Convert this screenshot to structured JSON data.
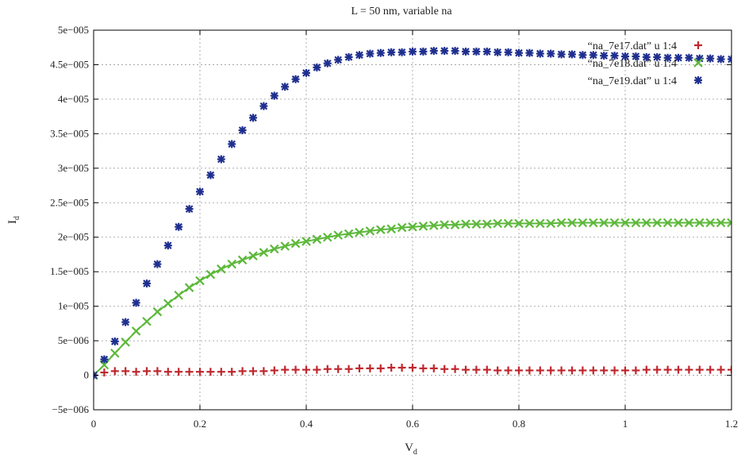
{
  "chart_data": {
    "type": "scatter",
    "title": "L = 50 nm, variable na",
    "xlabel": "V",
    "xlabel_sub": "d",
    "ylabel": "I",
    "ylabel_sub": "d",
    "xlim": [
      0,
      1.2
    ],
    "ylim": [
      -5e-06,
      5e-05
    ],
    "grid": true,
    "legend_position": "top-right",
    "x_ticks": [
      0,
      0.2,
      0.4,
      0.6,
      0.8,
      1,
      1.2
    ],
    "x_tick_labels": [
      "0",
      "0.2",
      "0.4",
      "0.6",
      "0.8",
      "1",
      "1.2"
    ],
    "y_ticks": [
      -5e-06,
      0,
      5e-06,
      1e-05,
      1.5e-05,
      2e-05,
      2.5e-05,
      3e-05,
      3.5e-05,
      4e-05,
      4.5e-05,
      5e-05
    ],
    "y_tick_labels": [
      "−5e−006",
      "0",
      "5e−006",
      "1e−005",
      "1.5e−005",
      "2e−005",
      "2.5e−005",
      "3e−005",
      "3.5e−005",
      "4e−005",
      "4.5e−005",
      "5e−005"
    ],
    "x": [
      0,
      0.02,
      0.04,
      0.06,
      0.08,
      0.1,
      0.12,
      0.14,
      0.16,
      0.18,
      0.2,
      0.22,
      0.24,
      0.26,
      0.28,
      0.3,
      0.32,
      0.34,
      0.36,
      0.38,
      0.4,
      0.42,
      0.44,
      0.46,
      0.48,
      0.5,
      0.52,
      0.54,
      0.56,
      0.58,
      0.6,
      0.62,
      0.64,
      0.66,
      0.68,
      0.7,
      0.72,
      0.74,
      0.76,
      0.78,
      0.8,
      0.82,
      0.84,
      0.86,
      0.88,
      0.9,
      0.92,
      0.94,
      0.96,
      0.98,
      1,
      1.02,
      1.04,
      1.06,
      1.08,
      1.1,
      1.12,
      1.14,
      1.16,
      1.18,
      1.2
    ],
    "series": [
      {
        "name": "“na_7e17.dat” u 1:4",
        "marker": "plus",
        "color": "#c0272d",
        "values": [
          0,
          4e-07,
          6e-07,
          6e-07,
          5e-07,
          6e-07,
          6e-07,
          5e-07,
          5e-07,
          5e-07,
          5e-07,
          5e-07,
          5e-07,
          5e-07,
          6e-07,
          6e-07,
          6e-07,
          7e-07,
          8e-07,
          8e-07,
          8e-07,
          8e-07,
          9e-07,
          9e-07,
          9e-07,
          1e-06,
          1e-06,
          1e-06,
          1.1e-06,
          1.1e-06,
          1.1e-06,
          1e-06,
          1e-06,
          9e-07,
          9e-07,
          8e-07,
          8e-07,
          8e-07,
          7e-07,
          7e-07,
          7e-07,
          7e-07,
          7e-07,
          7e-07,
          7e-07,
          7e-07,
          7e-07,
          7e-07,
          7e-07,
          7e-07,
          7e-07,
          7e-07,
          8e-07,
          8e-07,
          8e-07,
          8e-07,
          8e-07,
          8e-07,
          8e-07,
          8e-07,
          8e-07
        ]
      },
      {
        "name": "“na_7e18.dat” u 1:4",
        "marker": "cross",
        "color": "#5cb83a",
        "values": [
          0,
          1.5e-06,
          3.2e-06,
          4.8e-06,
          6.4e-06,
          7.8e-06,
          9.2e-06,
          1.04e-05,
          1.16e-05,
          1.27e-05,
          1.37e-05,
          1.46e-05,
          1.54e-05,
          1.61e-05,
          1.67e-05,
          1.73e-05,
          1.78e-05,
          1.83e-05,
          1.87e-05,
          1.91e-05,
          1.94e-05,
          1.97e-05,
          2e-05,
          2.03e-05,
          2.05e-05,
          2.07e-05,
          2.09e-05,
          2.11e-05,
          2.12e-05,
          2.14e-05,
          2.15e-05,
          2.16e-05,
          2.17e-05,
          2.18e-05,
          2.18e-05,
          2.19e-05,
          2.19e-05,
          2.19e-05,
          2.2e-05,
          2.2e-05,
          2.2e-05,
          2.2e-05,
          2.2e-05,
          2.2e-05,
          2.21e-05,
          2.21e-05,
          2.21e-05,
          2.21e-05,
          2.21e-05,
          2.21e-05,
          2.21e-05,
          2.21e-05,
          2.21e-05,
          2.21e-05,
          2.21e-05,
          2.21e-05,
          2.21e-05,
          2.21e-05,
          2.21e-05,
          2.21e-05,
          2.21e-05
        ]
      },
      {
        "name": "“na_7e19.dat” u 1:4",
        "marker": "star",
        "color": "#1f2f8f",
        "values": [
          0,
          2.3e-06,
          4.9e-06,
          7.7e-06,
          1.05e-05,
          1.33e-05,
          1.61e-05,
          1.88e-05,
          2.15e-05,
          2.41e-05,
          2.66e-05,
          2.9e-05,
          3.13e-05,
          3.35e-05,
          3.55e-05,
          3.73e-05,
          3.9e-05,
          4.05e-05,
          4.18e-05,
          4.29e-05,
          4.38e-05,
          4.46e-05,
          4.52e-05,
          4.57e-05,
          4.61e-05,
          4.64e-05,
          4.66e-05,
          4.67e-05,
          4.68e-05,
          4.68e-05,
          4.69e-05,
          4.69e-05,
          4.7e-05,
          4.7e-05,
          4.7e-05,
          4.69e-05,
          4.69e-05,
          4.69e-05,
          4.68e-05,
          4.68e-05,
          4.67e-05,
          4.67e-05,
          4.66e-05,
          4.66e-05,
          4.65e-05,
          4.65e-05,
          4.64e-05,
          4.64e-05,
          4.63e-05,
          4.63e-05,
          4.62e-05,
          4.62e-05,
          4.61e-05,
          4.61e-05,
          4.6e-05,
          4.6e-05,
          4.6e-05,
          4.59e-05,
          4.59e-05,
          4.58e-05,
          4.58e-05
        ]
      }
    ]
  }
}
